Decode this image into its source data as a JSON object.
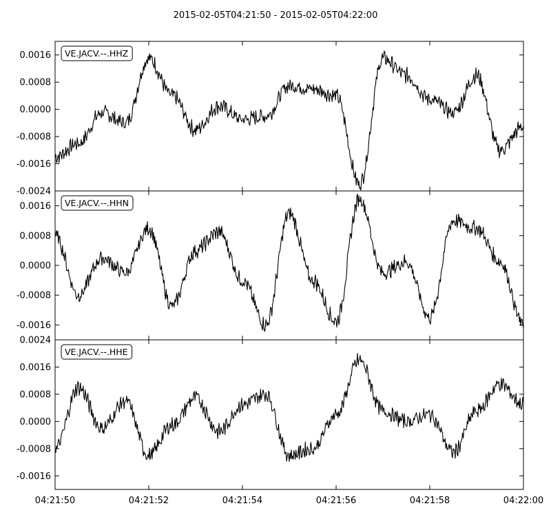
{
  "title": "2015-02-05T04:21:50  -  2015-02-05T04:22:00",
  "chart_data": [
    {
      "type": "line",
      "trace_label": "VE.JACV.--.HHZ",
      "x": [
        "04:21:50",
        "04:21:50.5",
        "04:21:51",
        "04:21:51.5",
        "04:21:52",
        "04:21:52.5",
        "04:21:53",
        "04:21:53.5",
        "04:21:54",
        "04:21:54.5",
        "04:21:55",
        "04:21:55.5",
        "04:21:56",
        "04:21:56.5",
        "04:21:57",
        "04:21:57.5",
        "04:21:58",
        "04:21:58.5",
        "04:21:59",
        "04:21:59.5",
        "04:22:00"
      ],
      "values": [
        -0.0014,
        -0.001,
        -0.0001,
        -0.0004,
        0.0015,
        0.0004,
        -0.0006,
        0.0001,
        -0.0003,
        -0.0002,
        0.0007,
        0.0006,
        0.0004,
        -0.0022,
        0.0015,
        0.001,
        0.0003,
        -0.0001,
        0.001,
        -0.0012,
        -0.0005
      ],
      "ylim": [
        -0.0024,
        0.002
      ],
      "yticks": [
        "0.0016",
        "0.0008",
        "0.0000",
        "-0.0008",
        "-0.0016",
        "-0.0024"
      ]
    },
    {
      "type": "line",
      "trace_label": "VE.JACV.--.HHN",
      "x": [
        "04:21:50",
        "04:21:50.5",
        "04:21:51",
        "04:21:51.5",
        "04:21:52",
        "04:21:52.5",
        "04:21:53",
        "04:21:53.5",
        "04:21:54",
        "04:21:54.5",
        "04:21:55",
        "04:21:55.5",
        "04:21:56",
        "04:21:56.5",
        "04:21:57",
        "04:21:57.5",
        "04:21:58",
        "04:21:58.5",
        "04:21:59",
        "04:21:59.5",
        "04:22:00"
      ],
      "values": [
        0.0008,
        -0.0008,
        0.0002,
        -0.0002,
        0.001,
        -0.0011,
        0.0004,
        0.0009,
        -0.0004,
        -0.0016,
        0.0014,
        -0.0004,
        -0.0015,
        0.0018,
        -0.0002,
        0.0001,
        -0.0014,
        0.0012,
        0.001,
        0.0001,
        -0.0016
      ],
      "ylim": [
        -0.002,
        0.002
      ],
      "yticks": [
        "0.0016",
        "0.0008",
        "0.0000",
        "-0.0008",
        "-0.0016"
      ]
    },
    {
      "type": "line",
      "trace_label": "VE.JACV.--.HHE",
      "x": [
        "04:21:50",
        "04:21:50.5",
        "04:21:51",
        "04:21:51.5",
        "04:21:52",
        "04:21:52.5",
        "04:21:53",
        "04:21:53.5",
        "04:21:54",
        "04:21:54.5",
        "04:21:55",
        "04:21:55.5",
        "04:21:56",
        "04:21:56.5",
        "04:21:57",
        "04:21:57.5",
        "04:21:58",
        "04:21:58.5",
        "04:21:59",
        "04:21:59.5",
        "04:22:00"
      ],
      "values": [
        -0.0008,
        0.001,
        -0.0002,
        0.0006,
        -0.001,
        -0.0001,
        0.0007,
        -0.0003,
        0.0005,
        0.0008,
        -0.001,
        -0.0008,
        0.0002,
        0.0018,
        0.0003,
        0.0,
        0.0002,
        -0.0009,
        0.0003,
        0.0011,
        0.0005
      ],
      "ylim": [
        -0.002,
        0.0024
      ],
      "yticks": [
        "0.0024",
        "0.0016",
        "0.0008",
        "0.0000",
        "-0.0008",
        "-0.0016"
      ]
    }
  ],
  "xticks": [
    "04:21:50",
    "04:21:52",
    "04:21:54",
    "04:21:56",
    "04:21:58",
    "04:22:00"
  ]
}
